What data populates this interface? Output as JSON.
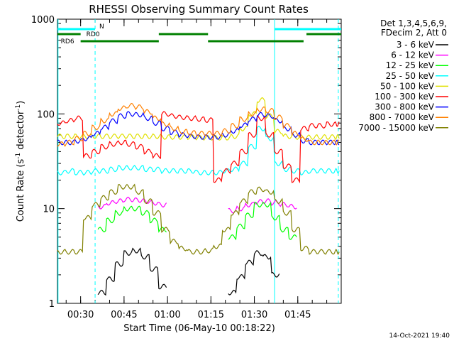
{
  "chart_data": {
    "type": "line",
    "title": "RHESSI Observing Summary Count Rates",
    "xlabel": "Start Time (06-May-10 00:18:22)",
    "ylabel_main": "Count Rate (s",
    "ylabel_sup1": "-1",
    "ylabel_mid": " detector",
    "ylabel_sup2": "-1",
    "ylabel_end": ")",
    "yscale": "log",
    "ylim": [
      1,
      1000
    ],
    "xlim_min": [
      22,
      120
    ],
    "x_ticks": [
      {
        "min": 30,
        "label": "00:30"
      },
      {
        "min": 45,
        "label": "00:45"
      },
      {
        "min": 60,
        "label": "01:00"
      },
      {
        "min": 75,
        "label": "01:15"
      },
      {
        "min": 90,
        "label": "01:30"
      },
      {
        "min": 105,
        "label": "01:45"
      }
    ],
    "y_ticks": [
      {
        "value": 1,
        "label": "1"
      },
      {
        "value": 10,
        "label": "10"
      },
      {
        "value": 100,
        "label": "100"
      },
      {
        "value": 1000,
        "label": "1000"
      }
    ],
    "legend_header": [
      "Det 1,3,4,5,6,9,",
      "FDecim 2, Att 0"
    ],
    "series": [
      {
        "name": "3 - 6 keV",
        "color": "#000000",
        "x": [
          30,
          33,
          36,
          39,
          42,
          45,
          48,
          51,
          54,
          57,
          60,
          63,
          66,
          69,
          72,
          75,
          78,
          81,
          84,
          87,
          90,
          93,
          96,
          99,
          102,
          105,
          108,
          111,
          114,
          117
        ],
        "values": [
          null,
          null,
          1.3,
          1.8,
          2.6,
          3.4,
          3.6,
          3.1,
          2.3,
          1.5,
          null,
          null,
          null,
          null,
          null,
          null,
          null,
          1.3,
          1.9,
          2.7,
          3.4,
          3.1,
          2.0,
          null,
          null,
          null,
          null,
          null,
          null,
          null
        ]
      },
      {
        "name": "6 - 12 keV",
        "color": "#ff00ff",
        "x": [
          30,
          33,
          36,
          39,
          42,
          45,
          48,
          51,
          54,
          57,
          60,
          63,
          66,
          69,
          72,
          75,
          78,
          81,
          84,
          87,
          90,
          93,
          96,
          99,
          102,
          105,
          108,
          111,
          114,
          117
        ],
        "values": [
          null,
          null,
          10.5,
          11.5,
          12,
          12.5,
          12.3,
          12,
          11.5,
          11,
          null,
          null,
          null,
          null,
          null,
          null,
          null,
          9.5,
          10,
          11,
          11.8,
          12,
          11.5,
          11,
          10.5,
          null,
          null,
          null,
          null,
          null
        ]
      },
      {
        "name": "12 - 25 keV",
        "color": "#00ff00",
        "x": [
          30,
          33,
          36,
          39,
          42,
          45,
          48,
          51,
          54,
          57,
          60,
          63,
          66,
          69,
          72,
          75,
          78,
          81,
          84,
          87,
          90,
          93,
          96,
          99,
          102,
          105,
          108,
          111,
          114,
          117
        ],
        "values": [
          null,
          null,
          6,
          7.5,
          9,
          10,
          10,
          9,
          7.5,
          6,
          null,
          null,
          null,
          null,
          null,
          null,
          null,
          5,
          6.5,
          8.5,
          11,
          11,
          8,
          6,
          5,
          null,
          null,
          null,
          null,
          null
        ]
      },
      {
        "name": "25 - 50 keV",
        "color": "#00ffff",
        "x": [
          22,
          25,
          28,
          31,
          34,
          37,
          40,
          43,
          46,
          49,
          52,
          55,
          58,
          61,
          64,
          67,
          70,
          73,
          76,
          79,
          82,
          85,
          88,
          91,
          94,
          97,
          100,
          103,
          106,
          109,
          112,
          115,
          118
        ],
        "values": [
          24,
          25,
          24,
          24,
          25,
          25,
          26,
          27,
          27,
          27,
          26,
          26,
          25,
          25,
          25,
          25,
          24,
          24,
          24,
          25,
          26,
          30,
          45,
          70,
          55,
          30,
          26,
          25,
          24,
          25,
          25,
          25,
          25
        ]
      },
      {
        "name": "50 - 100 keV",
        "color": "#e0e000",
        "x": [
          22,
          25,
          28,
          31,
          34,
          37,
          40,
          43,
          46,
          49,
          52,
          55,
          58,
          61,
          64,
          67,
          70,
          73,
          76,
          79,
          82,
          85,
          88,
          91,
          94,
          97,
          100,
          103,
          106,
          109,
          112,
          115,
          118
        ],
        "values": [
          58,
          58,
          58,
          58,
          58,
          58,
          58,
          58,
          58,
          58,
          58,
          58,
          57,
          57,
          57,
          57,
          56,
          56,
          56,
          56,
          58,
          70,
          100,
          140,
          95,
          65,
          58,
          57,
          57,
          57,
          57,
          57,
          57
        ]
      },
      {
        "name": "100 - 300 keV",
        "color": "#ff0000",
        "x": [
          22,
          25,
          28,
          31,
          34,
          37,
          40,
          43,
          46,
          49,
          52,
          55,
          58,
          61,
          64,
          67,
          70,
          73,
          76,
          79,
          82,
          85,
          88,
          91,
          94,
          97,
          100,
          103,
          106,
          109,
          112,
          115,
          118
        ],
        "values": [
          80,
          85,
          90,
          36,
          40,
          45,
          48,
          50,
          48,
          45,
          40,
          36,
          100,
          95,
          92,
          90,
          88,
          86,
          20,
          25,
          30,
          40,
          60,
          90,
          60,
          40,
          28,
          20,
          70,
          75,
          75,
          78,
          78
        ]
      },
      {
        "name": "300 - 800 keV",
        "color": "#0000ff",
        "x": [
          22,
          25,
          28,
          31,
          34,
          37,
          40,
          43,
          46,
          49,
          52,
          55,
          58,
          61,
          64,
          67,
          70,
          73,
          76,
          79,
          82,
          85,
          88,
          91,
          94,
          97,
          100,
          103,
          106,
          109,
          112,
          115,
          118
        ],
        "values": [
          50,
          50,
          52,
          55,
          62,
          72,
          84,
          95,
          100,
          98,
          90,
          80,
          70,
          64,
          60,
          58,
          57,
          57,
          57,
          60,
          66,
          76,
          88,
          98,
          95,
          85,
          70,
          60,
          52,
          50,
          50,
          50,
          50
        ]
      },
      {
        "name": "800 - 7000 keV",
        "color": "#ff8000",
        "x": [
          22,
          25,
          28,
          31,
          34,
          37,
          40,
          43,
          46,
          49,
          52,
          55,
          58,
          61,
          64,
          67,
          70,
          73,
          76,
          79,
          82,
          85,
          88,
          91,
          94,
          97,
          100,
          103,
          106,
          109,
          112,
          115,
          118
        ],
        "values": [
          48,
          50,
          55,
          62,
          72,
          85,
          100,
          115,
          122,
          118,
          105,
          90,
          78,
          70,
          65,
          63,
          62,
          62,
          62,
          66,
          75,
          88,
          100,
          112,
          108,
          92,
          75,
          62,
          54,
          50,
          50,
          50,
          50
        ]
      },
      {
        "name": "7000 - 15000 keV",
        "color": "#808000",
        "x": [
          22,
          25,
          28,
          31,
          34,
          37,
          40,
          43,
          46,
          49,
          52,
          55,
          58,
          61,
          64,
          67,
          70,
          73,
          76,
          79,
          82,
          85,
          88,
          91,
          94,
          97,
          100,
          103,
          106,
          109,
          112,
          115,
          118
        ],
        "values": [
          3.5,
          3.5,
          3.5,
          8,
          11,
          13,
          15,
          17,
          17,
          15,
          12,
          9,
          6,
          4.5,
          3.8,
          3.5,
          3.5,
          3.6,
          4,
          6,
          9,
          12,
          15,
          16,
          15,
          12,
          9,
          6,
          3.8,
          3.5,
          3.5,
          3.5,
          3.5
        ]
      }
    ],
    "flag_bars": [
      {
        "label": "N",
        "label_color": "#00c0c0",
        "color": "#00ffff",
        "segments": [
          [
            22,
            35
          ],
          [
            97,
            120
          ]
        ],
        "level": 0
      },
      {
        "label": "RD0",
        "label_color": "#008000",
        "color": "#008000",
        "segments": [
          [
            22,
            30
          ],
          [
            57,
            74
          ],
          [
            108,
            120
          ]
        ],
        "level": 1
      },
      {
        "label": "RD6",
        "label_color": "#008000",
        "color": "#008000",
        "segments": [
          [
            30,
            57
          ],
          [
            74,
            107
          ]
        ],
        "level": 2
      }
    ],
    "vlines": [
      {
        "min": 35,
        "style": "dashed",
        "color": "#00ffff"
      },
      {
        "min": 97,
        "style": "solid",
        "color": "#00ffff"
      },
      {
        "min": 119,
        "style": "dashed",
        "color": "#00ffff"
      },
      {
        "min": 22.2,
        "style": "solid",
        "color": "#00ffff"
      }
    ]
  },
  "footer": {
    "timestamp": "14-Oct-2021 19:40"
  }
}
